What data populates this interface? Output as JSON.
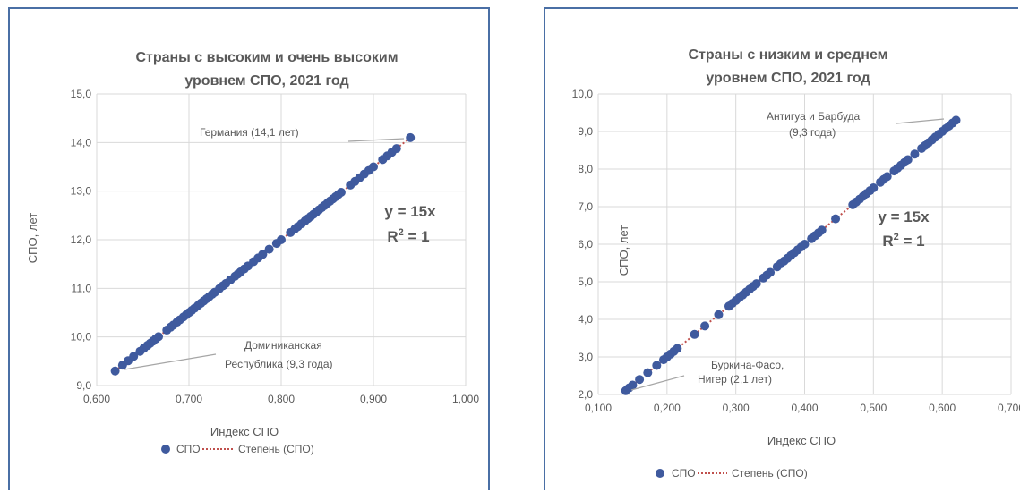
{
  "colors": {
    "marker": "#3f5a9e",
    "trend": "#c0504d",
    "grid": "#d9d9d9",
    "text": "#595959",
    "border": "#4a6fa5"
  },
  "chart_data": [
    {
      "type": "scatter",
      "title_line1": "Страны с высоким и очень высоким",
      "title_line2": "уровнем СПО, 2021 год",
      "xlabel": "Индекс СПО",
      "ylabel": "СПО, лет",
      "xlim": [
        0.6,
        1.0
      ],
      "ylim": [
        9.0,
        15.0
      ],
      "xticks": [
        "0,600",
        "0,700",
        "0,800",
        "0,900",
        "1,000"
      ],
      "yticks": [
        "9,0",
        "10,0",
        "11,0",
        "12,0",
        "13,0",
        "14,0",
        "15,0"
      ],
      "x_range": [
        0.62,
        0.94
      ],
      "trend_slope": 15,
      "equation": "y = 15x",
      "r2_prefix": "R",
      "r2_sup": "2",
      "r2_suffix": " = 1",
      "annotations": [
        {
          "text": "Германия (14,1 лет)"
        },
        {
          "line1": "Доминиканская",
          "line2": "Республика (9,3 года)"
        }
      ],
      "legend": {
        "series": "СПО",
        "trend": "Степень (СПО)"
      },
      "points_x": [
        0.62,
        0.628,
        0.634,
        0.64,
        0.647,
        0.651,
        0.655,
        0.658,
        0.661,
        0.664,
        0.667,
        0.676,
        0.68,
        0.683,
        0.687,
        0.69,
        0.694,
        0.697,
        0.7,
        0.703,
        0.706,
        0.71,
        0.713,
        0.716,
        0.719,
        0.722,
        0.725,
        0.728,
        0.733,
        0.737,
        0.74,
        0.745,
        0.75,
        0.753,
        0.756,
        0.76,
        0.764,
        0.77,
        0.775,
        0.78,
        0.787,
        0.795,
        0.8,
        0.81,
        0.815,
        0.818,
        0.822,
        0.826,
        0.829,
        0.832,
        0.835,
        0.838,
        0.841,
        0.844,
        0.847,
        0.85,
        0.853,
        0.856,
        0.859,
        0.862,
        0.865,
        0.875,
        0.88,
        0.885,
        0.89,
        0.895,
        0.9,
        0.91,
        0.915,
        0.92,
        0.925,
        0.94
      ]
    },
    {
      "type": "scatter",
      "title_line1": "Страны с низким и среднем",
      "title_line2": "уровнем СПО, 2021 год",
      "xlabel": "Индекс СПО",
      "ylabel": "СПО, лет",
      "xlim": [
        0.1,
        0.7
      ],
      "ylim": [
        2.0,
        10.0
      ],
      "xticks": [
        "0,100",
        "0,200",
        "0,300",
        "0,400",
        "0,500",
        "0,600",
        "0,700"
      ],
      "yticks": [
        "2,0",
        "3,0",
        "4,0",
        "5,0",
        "6,0",
        "7,0",
        "8,0",
        "9,0",
        "10,0"
      ],
      "x_range": [
        0.14,
        0.62
      ],
      "trend_slope": 15,
      "equation": "y = 15x",
      "r2_prefix": "R",
      "r2_sup": "2",
      "r2_suffix": " = 1",
      "annotations": [
        {
          "line1": "Антигуа и Барбуда",
          "line2": "(9,3 года)"
        },
        {
          "line1": "Буркина-Фасо,",
          "line2": "Нигер (2,1 лет)"
        }
      ],
      "legend": {
        "series": "СПО",
        "trend": "Степень (СПО)"
      },
      "points_x": [
        0.14,
        0.145,
        0.15,
        0.16,
        0.172,
        0.185,
        0.195,
        0.2,
        0.205,
        0.21,
        0.215,
        0.24,
        0.255,
        0.275,
        0.29,
        0.295,
        0.3,
        0.305,
        0.31,
        0.315,
        0.32,
        0.325,
        0.33,
        0.34,
        0.345,
        0.35,
        0.36,
        0.365,
        0.37,
        0.375,
        0.38,
        0.385,
        0.39,
        0.395,
        0.4,
        0.41,
        0.415,
        0.42,
        0.425,
        0.445,
        0.47,
        0.475,
        0.48,
        0.485,
        0.49,
        0.495,
        0.5,
        0.51,
        0.515,
        0.52,
        0.53,
        0.535,
        0.54,
        0.545,
        0.55,
        0.56,
        0.57,
        0.575,
        0.58,
        0.585,
        0.59,
        0.595,
        0.6,
        0.605,
        0.61,
        0.615,
        0.62
      ]
    }
  ]
}
